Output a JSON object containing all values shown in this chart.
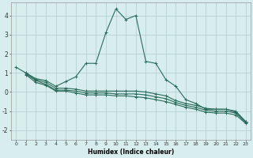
{
  "xlabel": "Humidex (Indice chaleur)",
  "bg_color": "#d8eeee",
  "grid_color": "#b0cccc",
  "line_color": "#2a6b5a",
  "xlim": [
    -0.5,
    23.5
  ],
  "ylim": [
    -2.5,
    4.7
  ],
  "xticks": [
    0,
    1,
    2,
    3,
    4,
    5,
    6,
    7,
    8,
    9,
    10,
    11,
    12,
    13,
    14,
    15,
    16,
    17,
    18,
    19,
    20,
    21,
    22,
    23
  ],
  "yticks": [
    -2,
    -1,
    0,
    1,
    2,
    3,
    4
  ],
  "line1_x": [
    0,
    1,
    2,
    3,
    4,
    5,
    6,
    7,
    8,
    9,
    10,
    11,
    12,
    13,
    14,
    15,
    16,
    17,
    18,
    19,
    20,
    21,
    22,
    23
  ],
  "line1_y": [
    1.3,
    1.0,
    0.7,
    0.6,
    0.3,
    0.55,
    0.8,
    1.5,
    1.5,
    3.1,
    4.35,
    3.8,
    4.0,
    1.6,
    1.5,
    0.65,
    0.3,
    -0.4,
    -0.6,
    -0.9,
    -0.9,
    -0.9,
    -1.05,
    -1.55
  ],
  "line2_x": [
    1,
    2,
    3,
    4,
    5,
    6,
    7,
    8,
    9,
    10,
    11,
    12,
    13,
    14,
    15,
    16,
    17,
    18,
    19,
    20,
    21,
    22,
    23
  ],
  "line2_y": [
    1.0,
    0.65,
    0.5,
    0.2,
    0.2,
    0.15,
    0.05,
    0.05,
    0.05,
    0.05,
    0.05,
    0.05,
    0.0,
    -0.1,
    -0.2,
    -0.45,
    -0.6,
    -0.7,
    -0.85,
    -0.9,
    -0.9,
    -1.0,
    -1.55
  ],
  "line3_x": [
    1,
    2,
    3,
    4,
    5,
    6,
    7,
    8,
    9,
    10,
    11,
    12,
    13,
    14,
    15,
    16,
    17,
    18,
    19,
    20,
    21,
    22,
    23
  ],
  "line3_y": [
    0.95,
    0.6,
    0.4,
    0.1,
    0.1,
    0.05,
    -0.05,
    -0.05,
    -0.05,
    -0.1,
    -0.1,
    -0.1,
    -0.15,
    -0.25,
    -0.35,
    -0.55,
    -0.7,
    -0.8,
    -0.95,
    -1.0,
    -1.0,
    -1.1,
    -1.6
  ],
  "line4_x": [
    1,
    2,
    3,
    4,
    5,
    6,
    7,
    8,
    9,
    10,
    11,
    12,
    13,
    14,
    15,
    16,
    17,
    18,
    19,
    20,
    21,
    22,
    23
  ],
  "line4_y": [
    0.9,
    0.5,
    0.35,
    0.05,
    0.05,
    -0.05,
    -0.15,
    -0.15,
    -0.15,
    -0.2,
    -0.2,
    -0.25,
    -0.3,
    -0.4,
    -0.5,
    -0.65,
    -0.8,
    -0.9,
    -1.05,
    -1.1,
    -1.1,
    -1.2,
    -1.65
  ]
}
